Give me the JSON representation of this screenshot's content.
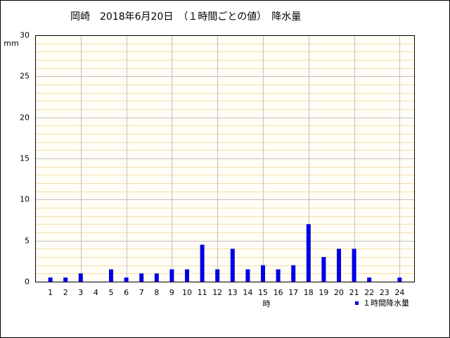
{
  "chart_data": {
    "type": "bar",
    "title": "岡崎　2018年6月20日　（１時間ごとの値）　降水量",
    "y_label": "mm",
    "x_label": "時",
    "categories": [
      "1",
      "2",
      "3",
      "4",
      "5",
      "6",
      "7",
      "8",
      "9",
      "10",
      "11",
      "12",
      "13",
      "14",
      "15",
      "16",
      "17",
      "18",
      "19",
      "20",
      "21",
      "22",
      "23",
      "24"
    ],
    "series": [
      {
        "name": "１時間降水量",
        "color": "#0000e6",
        "values": [
          0.5,
          0.5,
          1.0,
          0,
          1.5,
          0.5,
          1.0,
          1.0,
          1.5,
          1.5,
          4.5,
          1.5,
          4.0,
          1.5,
          2.0,
          1.5,
          2.0,
          7.0,
          3.0,
          4.0,
          4.0,
          0.5,
          0,
          0.5
        ]
      }
    ],
    "ylim": [
      0,
      30
    ],
    "yticks": [
      0,
      5,
      10,
      15,
      20,
      25,
      30
    ],
    "grid": true
  }
}
